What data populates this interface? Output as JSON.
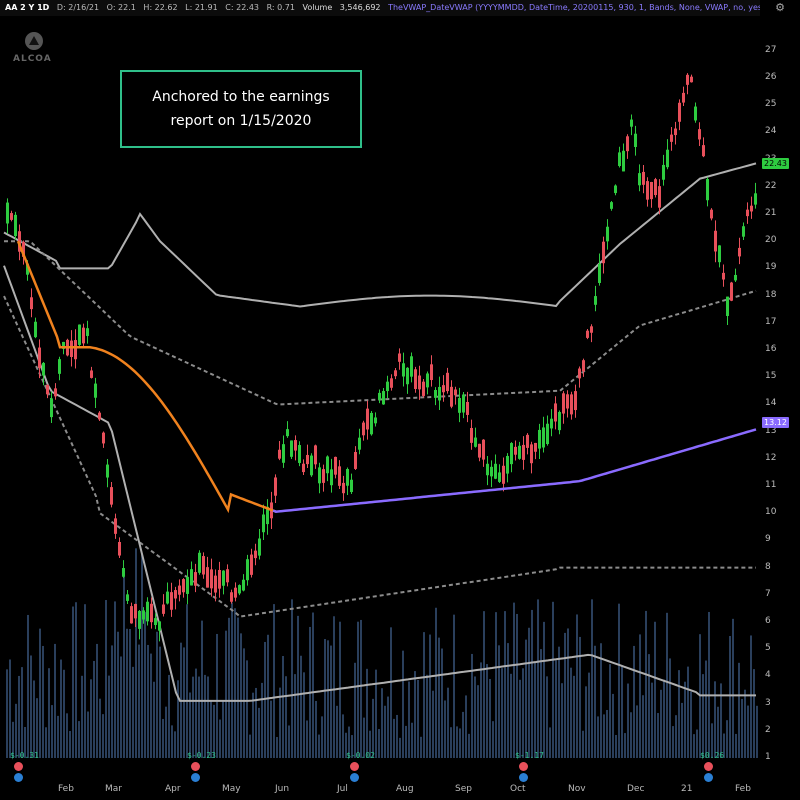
{
  "header": {
    "symbol": "AA 2 Y 1D",
    "date": "D: 2/16/21",
    "open": "O: 22.1",
    "high": "H: 22.62",
    "low": "L: 21.91",
    "close": "C: 22.43",
    "range": "R: 0.71",
    "volume_label": "Volume",
    "volume_value": "3,546,692",
    "study": "TheVWAP_DateVWAP (YYYYMMDD, DateTime, 20200115, 930, 1, Bands, None, VWAP, no, yes)"
  },
  "logo_text": "ALCOA",
  "annotation": {
    "line1": "Anchored to the earnings",
    "line2": "report on 1/15/2020"
  },
  "price_tags": {
    "last": "22.43",
    "vwap": "13.12"
  },
  "y_axis": [
    "27",
    "26",
    "25",
    "24",
    "23",
    "22",
    "21",
    "20",
    "19",
    "18",
    "17",
    "16",
    "15",
    "14",
    "13",
    "12",
    "11",
    "10",
    "9",
    "8",
    "7",
    "6",
    "5",
    "4",
    "3",
    "2",
    "1"
  ],
  "x_axis": [
    "Feb",
    "Mar",
    "Apr",
    "May",
    "Jun",
    "Jul",
    "Aug",
    "Sep",
    "Oct",
    "Nov",
    "Dec",
    "21",
    "Feb"
  ],
  "earnings": [
    "$-0.31",
    "$-0.23",
    "$-0.02",
    "$-1.17",
    "$0.26"
  ],
  "colors": {
    "up": "#2ecc40",
    "down": "#e8505b",
    "vwap_pre": "#f0821e",
    "vwap_post": "#8a6bff",
    "band_outer": "#b0b0b0",
    "band_inner": "#8c8c8c",
    "volume": "#2a3f5c"
  },
  "chart_data": {
    "type": "candlestick",
    "vwap_value": 13.12,
    "last_close": 22.43,
    "ylim": [
      1,
      27
    ]
  }
}
